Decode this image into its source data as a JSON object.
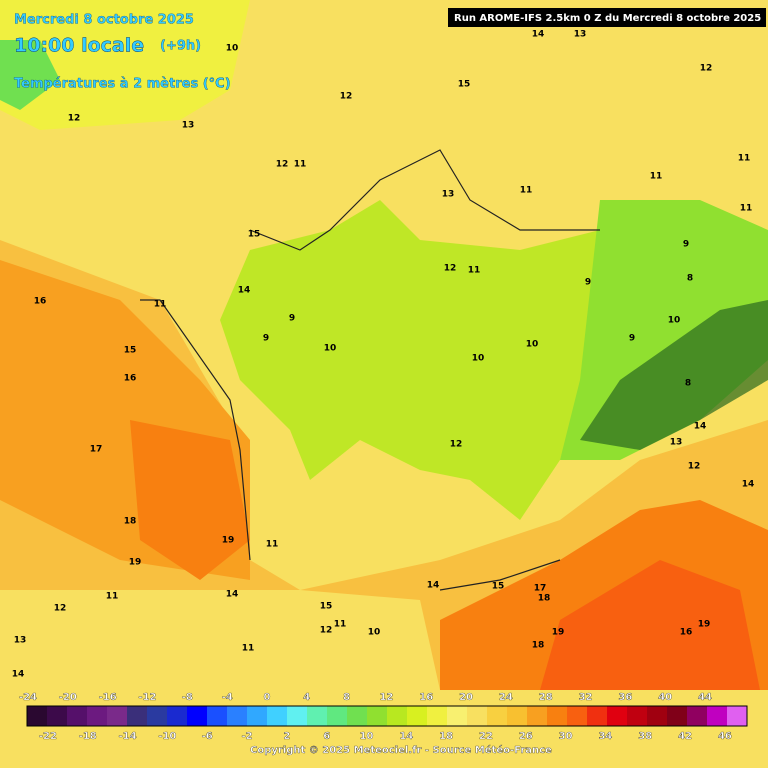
{
  "header": {
    "date": "Mercredi 8 octobre 2025",
    "time": "10:00 locale",
    "offset": "(+9h)",
    "field": "Températures à 2 mètres (°C)",
    "run": "Run AROME-IFS 2.5km 0 Z du Mercredi 8 octobre 2025"
  },
  "legend": {
    "top_labels": [
      -24,
      -20,
      -16,
      -12,
      -8,
      -4,
      0,
      4,
      8,
      12,
      16,
      20,
      24,
      28,
      32,
      36,
      40,
      44
    ],
    "bottom_labels": [
      -22,
      -18,
      -14,
      -10,
      -6,
      -2,
      2,
      6,
      10,
      14,
      18,
      22,
      26,
      30,
      34,
      38,
      42,
      46
    ],
    "colors": [
      "#2a0830",
      "#3c0a4a",
      "#55106a",
      "#6c1a80",
      "#7a2a8a",
      "#3a2f7a",
      "#2a3aa0",
      "#1a2ad0",
      "#0000ff",
      "#1a50ff",
      "#2a80ff",
      "#30a8ff",
      "#40d0ff",
      "#60f0f0",
      "#60f0b0",
      "#60e880",
      "#70e050",
      "#90e030",
      "#b8e820",
      "#d8f020",
      "#f0f040",
      "#f8f070",
      "#f8e060",
      "#f8d040",
      "#f8c030",
      "#f8a020",
      "#f88010",
      "#f86010",
      "#f03010",
      "#e00010",
      "#c00010",
      "#a00010",
      "#800018",
      "#900060",
      "#c000c0",
      "#e060f0"
    ]
  },
  "map": {
    "contour_labels": [
      14,
      13,
      12,
      10,
      12,
      12,
      11,
      13,
      12,
      15,
      13,
      11,
      15,
      16,
      11,
      15,
      16,
      17,
      18,
      19,
      19,
      11,
      14,
      12,
      10,
      9,
      9,
      10,
      12,
      11,
      10,
      9,
      9,
      8,
      9,
      10,
      8,
      11,
      13,
      14,
      12,
      14,
      14,
      15,
      17,
      18,
      19,
      18,
      16,
      19,
      15,
      12,
      11,
      10,
      11,
      14,
      11,
      12,
      13,
      14,
      11,
      11
    ]
  },
  "footer": {
    "copyright": "Copyright © 2025 Meteociel.fr - Source Météo-France"
  }
}
